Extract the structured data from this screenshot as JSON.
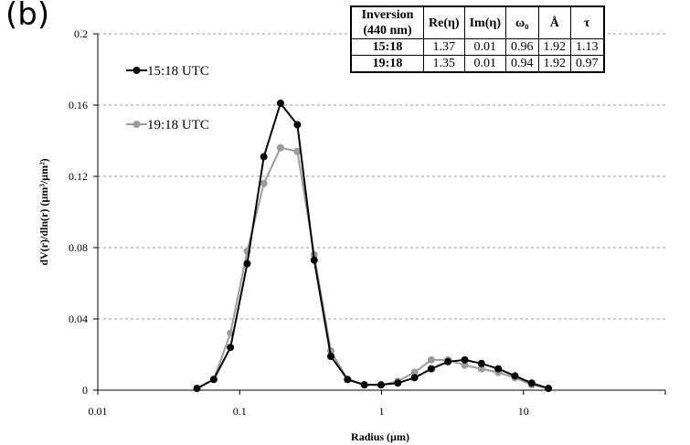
{
  "panel_label": "(b)",
  "table": {
    "headers": [
      "Inversion (440 nm)",
      "Re(η)",
      "Im(η)",
      "ω₀",
      "Å",
      "τ"
    ],
    "rows": [
      [
        "15:18",
        "1.37",
        "0.01",
        "0.96",
        "1.92",
        "1.13"
      ],
      [
        "19:18",
        "1.35",
        "0.01",
        "0.94",
        "1.92",
        "0.97"
      ]
    ]
  },
  "chart_data": {
    "type": "line",
    "title": "",
    "xlabel": "Radius (µm)",
    "ylabel": "dV(r)/dln(r) (µm³/µm²)",
    "xscale": "log",
    "xlim": [
      0.01,
      100
    ],
    "ylim": [
      0,
      0.2
    ],
    "x_ticks": [
      "0.01",
      "0.1",
      "1",
      "10"
    ],
    "y_ticks": [
      "0",
      "0.04",
      "0.08",
      "0.12",
      "0.16",
      "0.2"
    ],
    "grid": "horizontal dashed",
    "legend_position": "upper-left",
    "x": [
      0.05,
      0.0656,
      0.0861,
      0.113,
      0.148,
      0.194,
      0.255,
      0.335,
      0.439,
      0.576,
      0.756,
      0.992,
      1.302,
      1.708,
      2.241,
      2.94,
      3.857,
      5.061,
      6.641,
      8.713,
      11.432,
      15.0
    ],
    "series": [
      {
        "name": "15:18 UTC",
        "color": "#000000",
        "values": [
          0.001,
          0.006,
          0.024,
          0.071,
          0.131,
          0.161,
          0.149,
          0.073,
          0.019,
          0.006,
          0.003,
          0.003,
          0.004,
          0.007,
          0.012,
          0.016,
          0.017,
          0.015,
          0.012,
          0.008,
          0.004,
          0.001
        ]
      },
      {
        "name": "19:18 UTC",
        "color": "#9b9b9b",
        "values": [
          0.001,
          0.006,
          0.032,
          0.078,
          0.116,
          0.136,
          0.134,
          0.076,
          0.022,
          0.006,
          0.003,
          0.003,
          0.005,
          0.01,
          0.017,
          0.017,
          0.014,
          0.012,
          0.01,
          0.007,
          0.003,
          0.001
        ]
      }
    ]
  }
}
